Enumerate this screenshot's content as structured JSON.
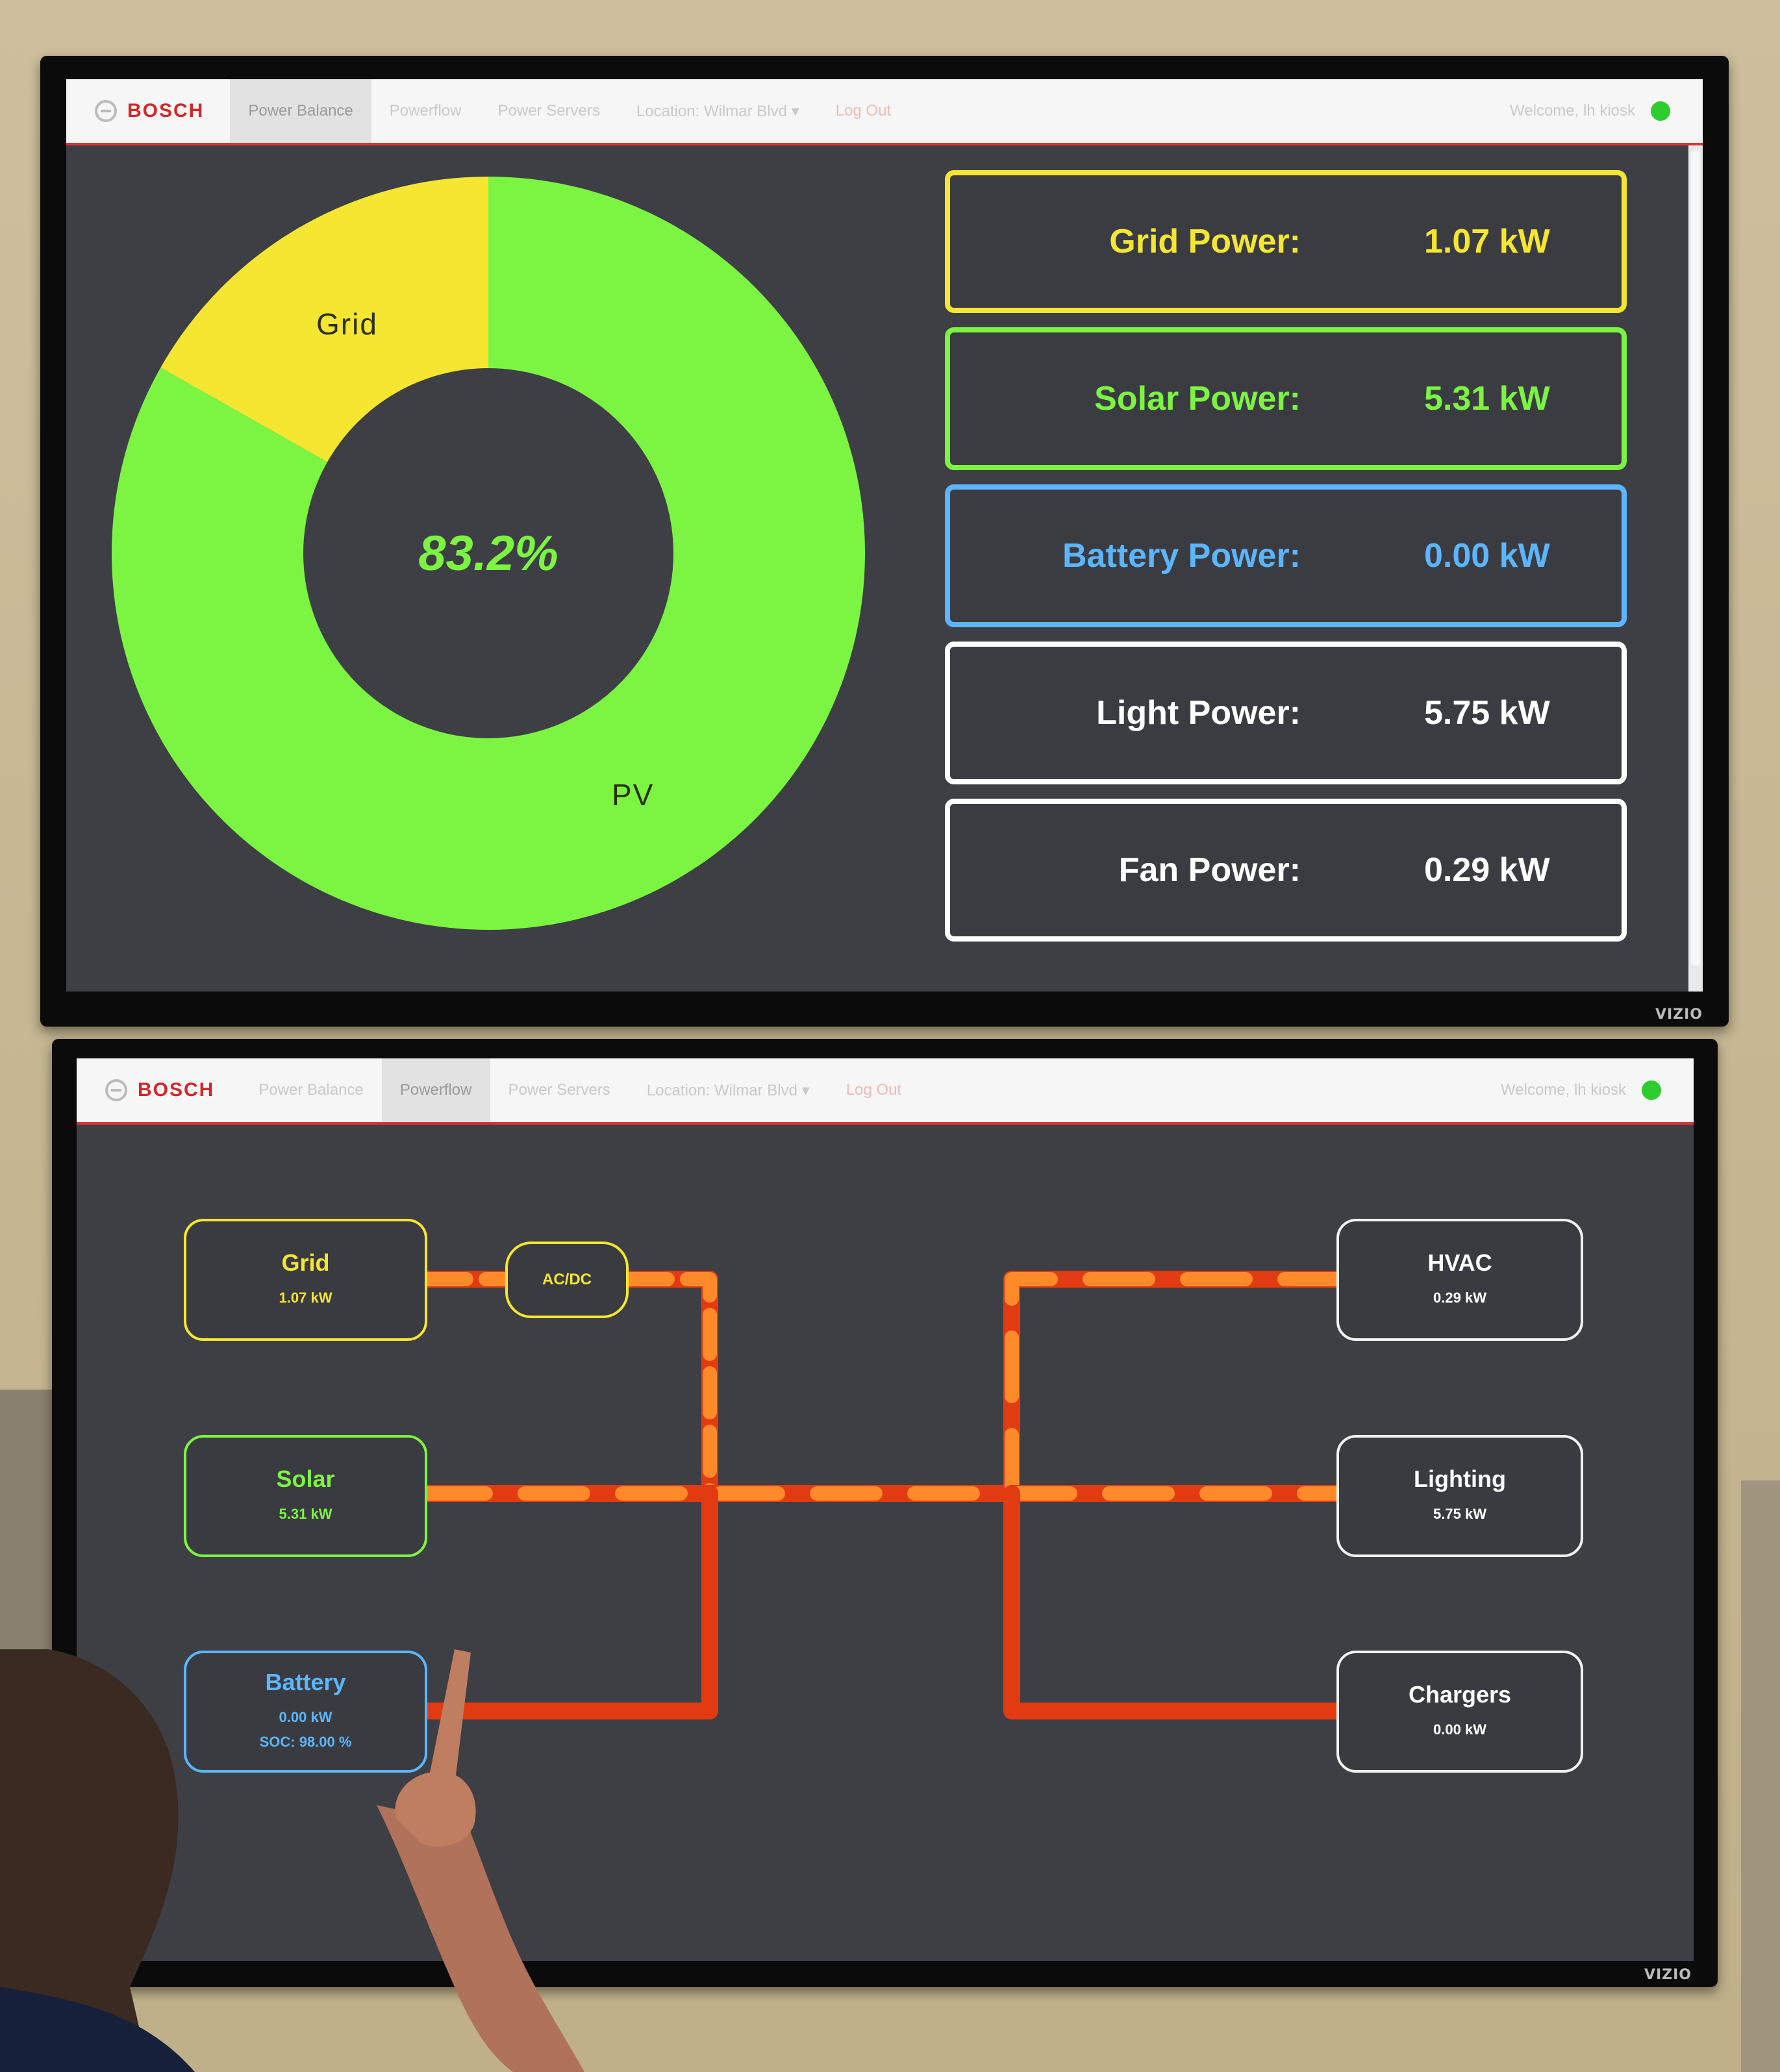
{
  "top_screen": {
    "nav": {
      "logo_text": "BOSCH",
      "items": [
        {
          "label": "Power Balance",
          "active": true
        },
        {
          "label": "Powerflow",
          "active": false
        },
        {
          "label": "Power Servers",
          "active": false
        },
        {
          "label": "Location: Wilmar Blvd ▾",
          "active": false
        },
        {
          "label": "Log Out",
          "active": false
        }
      ],
      "welcome": "Welcome, lh kiosk",
      "status_color": "#2ecc2e"
    },
    "chart_data": {
      "type": "pie",
      "categories": [
        "Grid",
        "PV"
      ],
      "values": [
        16.8,
        83.2
      ],
      "colors": [
        "#f5e631",
        "#7cf542"
      ],
      "center_text": "83.2%",
      "donut": true
    },
    "power_readings": [
      {
        "label": "Grid Power:",
        "value": "1.07 kW",
        "color": "#f5e631"
      },
      {
        "label": "Solar Power:",
        "value": "5.31 kW",
        "color": "#7cf542"
      },
      {
        "label": "Battery Power:",
        "value": "0.00 kW",
        "color": "#5bb6ff"
      },
      {
        "label": "Light Power:",
        "value": "5.75 kW",
        "color": "#ffffff"
      },
      {
        "label": "Fan Power:",
        "value": "0.29 kW",
        "color": "#ffffff"
      }
    ],
    "tv_brand": "VIZIO"
  },
  "bottom_screen": {
    "nav": {
      "logo_text": "BOSCH",
      "items": [
        {
          "label": "Power Balance",
          "active": false
        },
        {
          "label": "Powerflow",
          "active": true
        },
        {
          "label": "Power Servers",
          "active": false
        },
        {
          "label": "Location: Wilmar Blvd ▾",
          "active": false
        },
        {
          "label": "Log Out",
          "active": false
        }
      ],
      "welcome": "Welcome, lh kiosk",
      "status_color": "#2ecc2e"
    },
    "sources": {
      "grid": {
        "name": "Grid",
        "value": "1.07 kW",
        "color": "#f5e631"
      },
      "acdc": {
        "name": "AC/DC",
        "color": "#f5e631"
      },
      "solar": {
        "name": "Solar",
        "value": "5.31 kW",
        "color": "#7cf542"
      },
      "battery": {
        "name": "Battery",
        "value": "0.00 kW",
        "soc": "SOC: 98.00 %",
        "color": "#5bb6ff"
      }
    },
    "loads": {
      "hvac": {
        "name": "HVAC",
        "value": "0.29 kW"
      },
      "lighting": {
        "name": "Lighting",
        "value": "5.75 kW"
      },
      "chargers": {
        "name": "Chargers",
        "value": "0.00 kW"
      }
    },
    "flow_colors": {
      "line": "#e23b12",
      "dash": "#ff8a2a"
    },
    "tv_brand": "VIZIO"
  }
}
